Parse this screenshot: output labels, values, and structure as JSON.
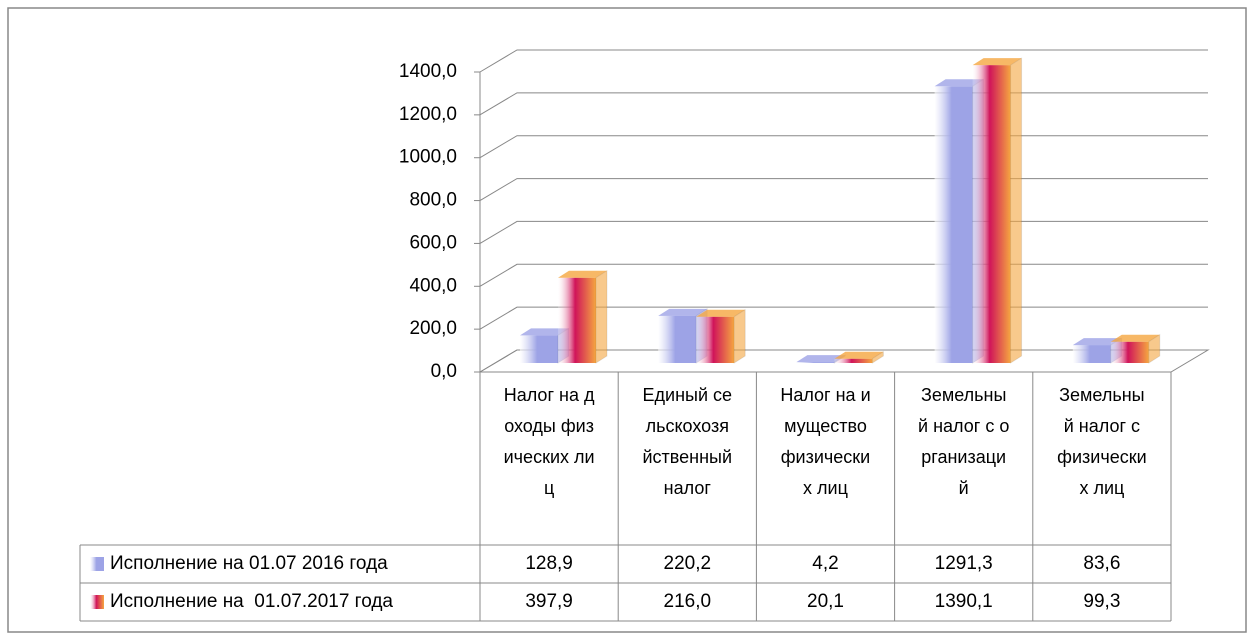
{
  "chart_data": {
    "type": "bar3d",
    "categories": [
      "Налог на доходы физических лиц",
      "Единый сельскохозяйственный налог",
      "Налог на имущество физических лиц",
      "Земельный налог с организаций",
      "Земельный налог с физических лиц"
    ],
    "series": [
      {
        "name": "Исполнение на 01.07 2016 года",
        "color": "#9da3e6",
        "values": [
          128.9,
          220.2,
          4.2,
          1291.3,
          83.6
        ],
        "value_labels": [
          "128,9",
          "220,2",
          "4,2",
          "1291,3",
          "83,6"
        ]
      },
      {
        "name": "Исполнение на  01.07.2017 года",
        "color": "#f5a640",
        "values": [
          397.9,
          216.0,
          20.1,
          1390.1,
          99.3
        ],
        "value_labels": [
          "397,9",
          "216,0",
          "20,1",
          "1390,1",
          "99,3"
        ]
      }
    ],
    "ylim": [
      0,
      1400
    ],
    "yticks": [
      {
        "value": 0,
        "label": "0,0"
      },
      {
        "value": 200,
        "label": "200,0"
      },
      {
        "value": 400,
        "label": "400,0"
      },
      {
        "value": 600,
        "label": "600,0"
      },
      {
        "value": 800,
        "label": "800,0"
      },
      {
        "value": 1000,
        "label": "1000,0"
      },
      {
        "value": 1200,
        "label": "1200,0"
      },
      {
        "value": 1400,
        "label": "1400,0"
      }
    ],
    "grid": true
  }
}
